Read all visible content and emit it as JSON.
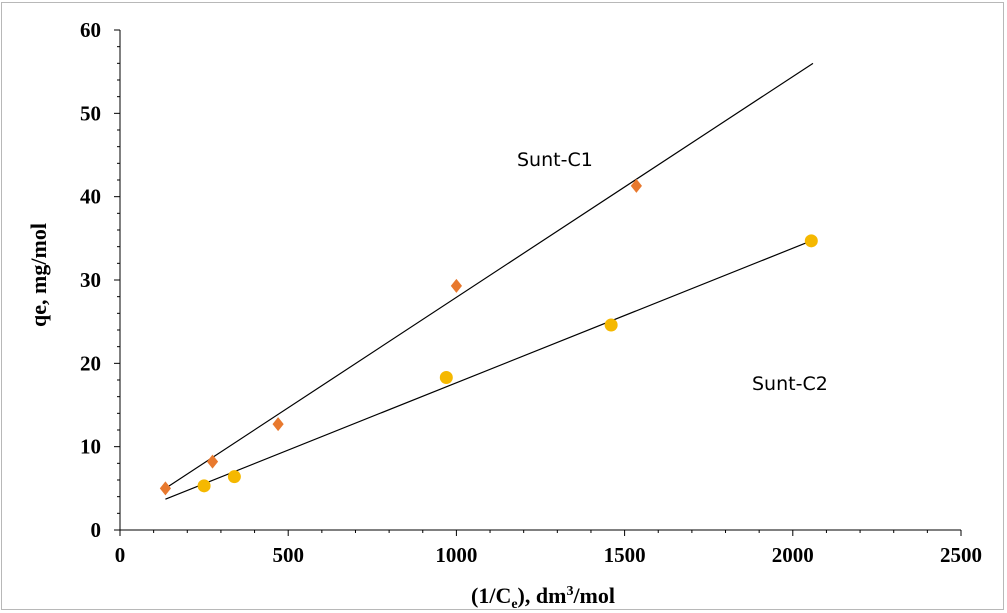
{
  "chart_data": {
    "type": "scatter",
    "title": "",
    "xlabel": {
      "prefix": "(1/C",
      "sub": "e",
      "mid": "), dm",
      "sup": "3",
      "suffix": "/mol"
    },
    "ylabel": "qe, mg/mol",
    "xlim": [
      0,
      2500
    ],
    "ylim": [
      0,
      60
    ],
    "x_ticks": [
      0,
      500,
      1000,
      1500,
      2000,
      2500
    ],
    "y_ticks": [
      0,
      10,
      20,
      30,
      40,
      50,
      60
    ],
    "grid": false,
    "series": [
      {
        "name": "Sunt-C1",
        "marker": "diamond",
        "color": "#E8792E",
        "x": [
          135,
          275,
          470,
          1000,
          1535
        ],
        "y": [
          5.0,
          8.2,
          12.7,
          29.3,
          41.3
        ],
        "trendline": {
          "x": [
            135,
            2060
          ],
          "y": [
            5.0,
            56.0
          ]
        }
      },
      {
        "name": "Sunt-C2",
        "marker": "circle",
        "color": "#F5B800",
        "x": [
          250,
          340,
          970,
          1460,
          2055
        ],
        "y": [
          5.3,
          6.4,
          18.3,
          24.6,
          34.7
        ],
        "trendline": {
          "x": [
            135,
            2055
          ],
          "y": [
            3.7,
            34.7
          ]
        }
      }
    ]
  }
}
